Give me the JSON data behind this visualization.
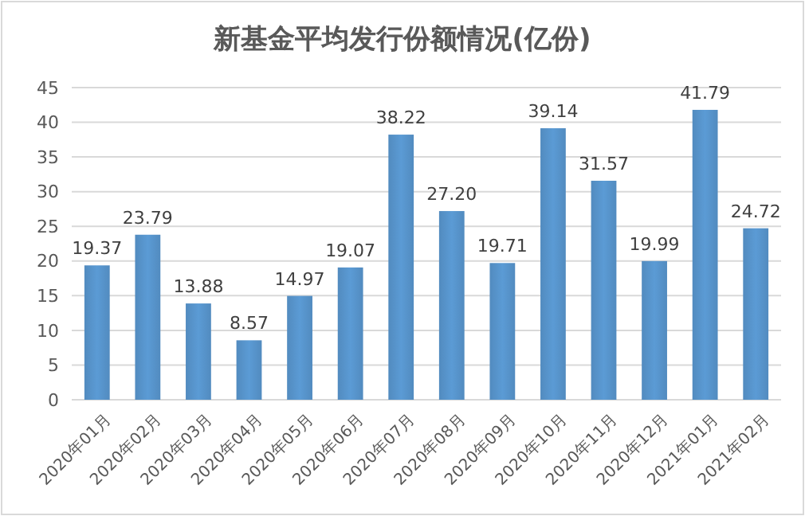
{
  "chart_data": {
    "type": "bar",
    "title": "新基金平均发行份额情况(亿份)",
    "categories": [
      "2020年01月",
      "2020年02月",
      "2020年03月",
      "2020年04月",
      "2020年05月",
      "2020年06月",
      "2020年07月",
      "2020年08月",
      "2020年09月",
      "2020年10月",
      "2020年11月",
      "2020年12月",
      "2021年01月",
      "2021年02月"
    ],
    "values": [
      19.37,
      23.79,
      13.88,
      8.57,
      14.97,
      19.07,
      38.22,
      27.2,
      19.71,
      39.14,
      31.57,
      19.99,
      41.79,
      24.72
    ],
    "value_labels": [
      "19.37",
      "23.79",
      "13.88",
      "8.57",
      "14.97",
      "19.07",
      "38.22",
      "27.20",
      "19.71",
      "39.14",
      "31.57",
      "19.99",
      "41.79",
      "24.72"
    ],
    "color": "#5b9bd5",
    "ylim": [
      0,
      45
    ],
    "yticks": [
      0,
      5,
      10,
      15,
      20,
      25,
      30,
      35,
      40,
      45
    ],
    "grid": "y"
  }
}
